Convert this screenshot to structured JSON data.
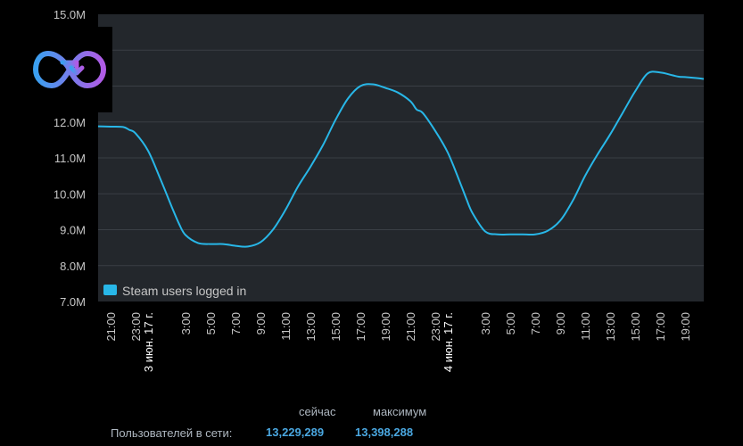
{
  "chart_data": {
    "type": "line",
    "title": "",
    "xlabel": "",
    "ylabel": "",
    "ylim": [
      7.0,
      15.0
    ],
    "y_ticks": [
      "15.0M",
      "",
      "",
      "12.0M",
      "11.0M",
      "10.0M",
      "9.0M",
      "8.0M",
      "7.0M"
    ],
    "y_tick_values": [
      15,
      14,
      13,
      12,
      11,
      10,
      9,
      8,
      7
    ],
    "x_ticks": [
      "21:00",
      "23:00",
      "3 июн. 17 г.",
      "3:00",
      "5:00",
      "7:00",
      "9:00",
      "11:00",
      "13:00",
      "15:00",
      "17:00",
      "19:00",
      "21:00",
      "23:00",
      "4 июн. 17 г.",
      "3:00",
      "5:00",
      "7:00",
      "9:00",
      "11:00",
      "13:00",
      "15:00",
      "17:00",
      "19:00"
    ],
    "x_tick_hours": [
      0,
      2,
      3,
      6,
      8,
      10,
      12,
      14,
      16,
      18,
      20,
      22,
      24,
      26,
      27,
      30,
      32,
      34,
      36,
      38,
      40,
      42,
      44,
      46
    ],
    "x_range_hours": [
      -1.0,
      47.5
    ],
    "series": [
      {
        "name": "Steam users logged in",
        "color": "#28b7e8",
        "x_hours": [
          -1,
          0,
          1,
          1.5,
          2,
          3,
          4,
          5,
          5.5,
          6,
          7,
          8,
          9,
          10,
          11,
          12,
          13,
          14,
          15,
          16,
          17,
          18,
          19,
          20,
          21,
          22,
          23,
          24,
          24.5,
          25,
          26,
          27,
          28,
          28.5,
          29,
          30,
          31,
          32,
          33,
          34,
          35,
          36,
          37,
          38,
          39,
          40,
          41,
          42,
          43,
          44,
          45,
          45.5,
          46,
          47,
          47.5
        ],
        "values": [
          11.88,
          11.87,
          11.86,
          11.78,
          11.68,
          11.2,
          10.4,
          9.55,
          9.15,
          8.85,
          8.63,
          8.6,
          8.6,
          8.55,
          8.53,
          8.65,
          9.0,
          9.55,
          10.2,
          10.75,
          11.35,
          12.05,
          12.65,
          13.0,
          13.05,
          12.95,
          12.82,
          12.58,
          12.35,
          12.25,
          11.75,
          11.15,
          10.3,
          9.85,
          9.45,
          8.95,
          8.87,
          8.87,
          8.87,
          8.87,
          8.97,
          9.25,
          9.8,
          10.5,
          11.1,
          11.65,
          12.25,
          12.85,
          13.35,
          13.38,
          13.3,
          13.26,
          13.25,
          13.22,
          13.2
        ]
      }
    ],
    "legend": {
      "label": "Steam users logged in",
      "placement": "bottom-left"
    },
    "grid": true
  },
  "stats": {
    "now_header": "сейчас",
    "max_header": "максимум",
    "label": "Пользователей в сети:",
    "now_value": "13,229,289",
    "max_value": "13,398,288"
  },
  "colors": {
    "background": "#000000",
    "plot_background": "#23272c",
    "grid": "#3a3f45",
    "line": "#28b7e8",
    "value_text": "#4aa7e0"
  },
  "logo": {
    "icon": "sync-loop-logo-icon"
  }
}
